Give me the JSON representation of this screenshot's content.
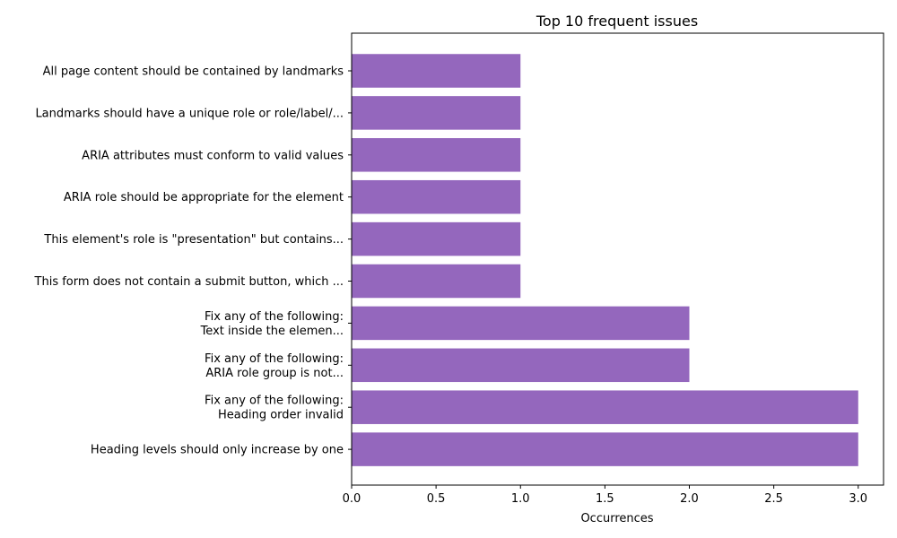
{
  "chart_data": {
    "type": "bar",
    "orientation": "horizontal",
    "title": "Top 10 frequent issues",
    "xlabel": "Occurrences",
    "ylabel": "",
    "xlim": [
      0,
      3.15
    ],
    "xticks": [
      "0.0",
      "0.5",
      "1.0",
      "1.5",
      "2.0",
      "2.5",
      "3.0"
    ],
    "xtick_values": [
      0,
      0.5,
      1.0,
      1.5,
      2.0,
      2.5,
      3.0
    ],
    "grid": false,
    "legend": "none",
    "bar_color": "#9467bd",
    "categories": [
      "All page content should be contained by landmarks",
      "Landmarks should have a unique role or role/label/...",
      "ARIA attributes must conform to valid values",
      "ARIA role should be appropriate for the element",
      "This element's role is \"presentation\" but contains...",
      "This form does not contain a submit button, which ...",
      "Fix any of the following:\nText inside the elemen...",
      "Fix any of the following:\nARIA role group is not...",
      "Fix any of the following:\n Heading order invalid",
      "Heading levels should only increase by one"
    ],
    "values": [
      1,
      1,
      1,
      1,
      1,
      1,
      2,
      2,
      3,
      3
    ]
  }
}
